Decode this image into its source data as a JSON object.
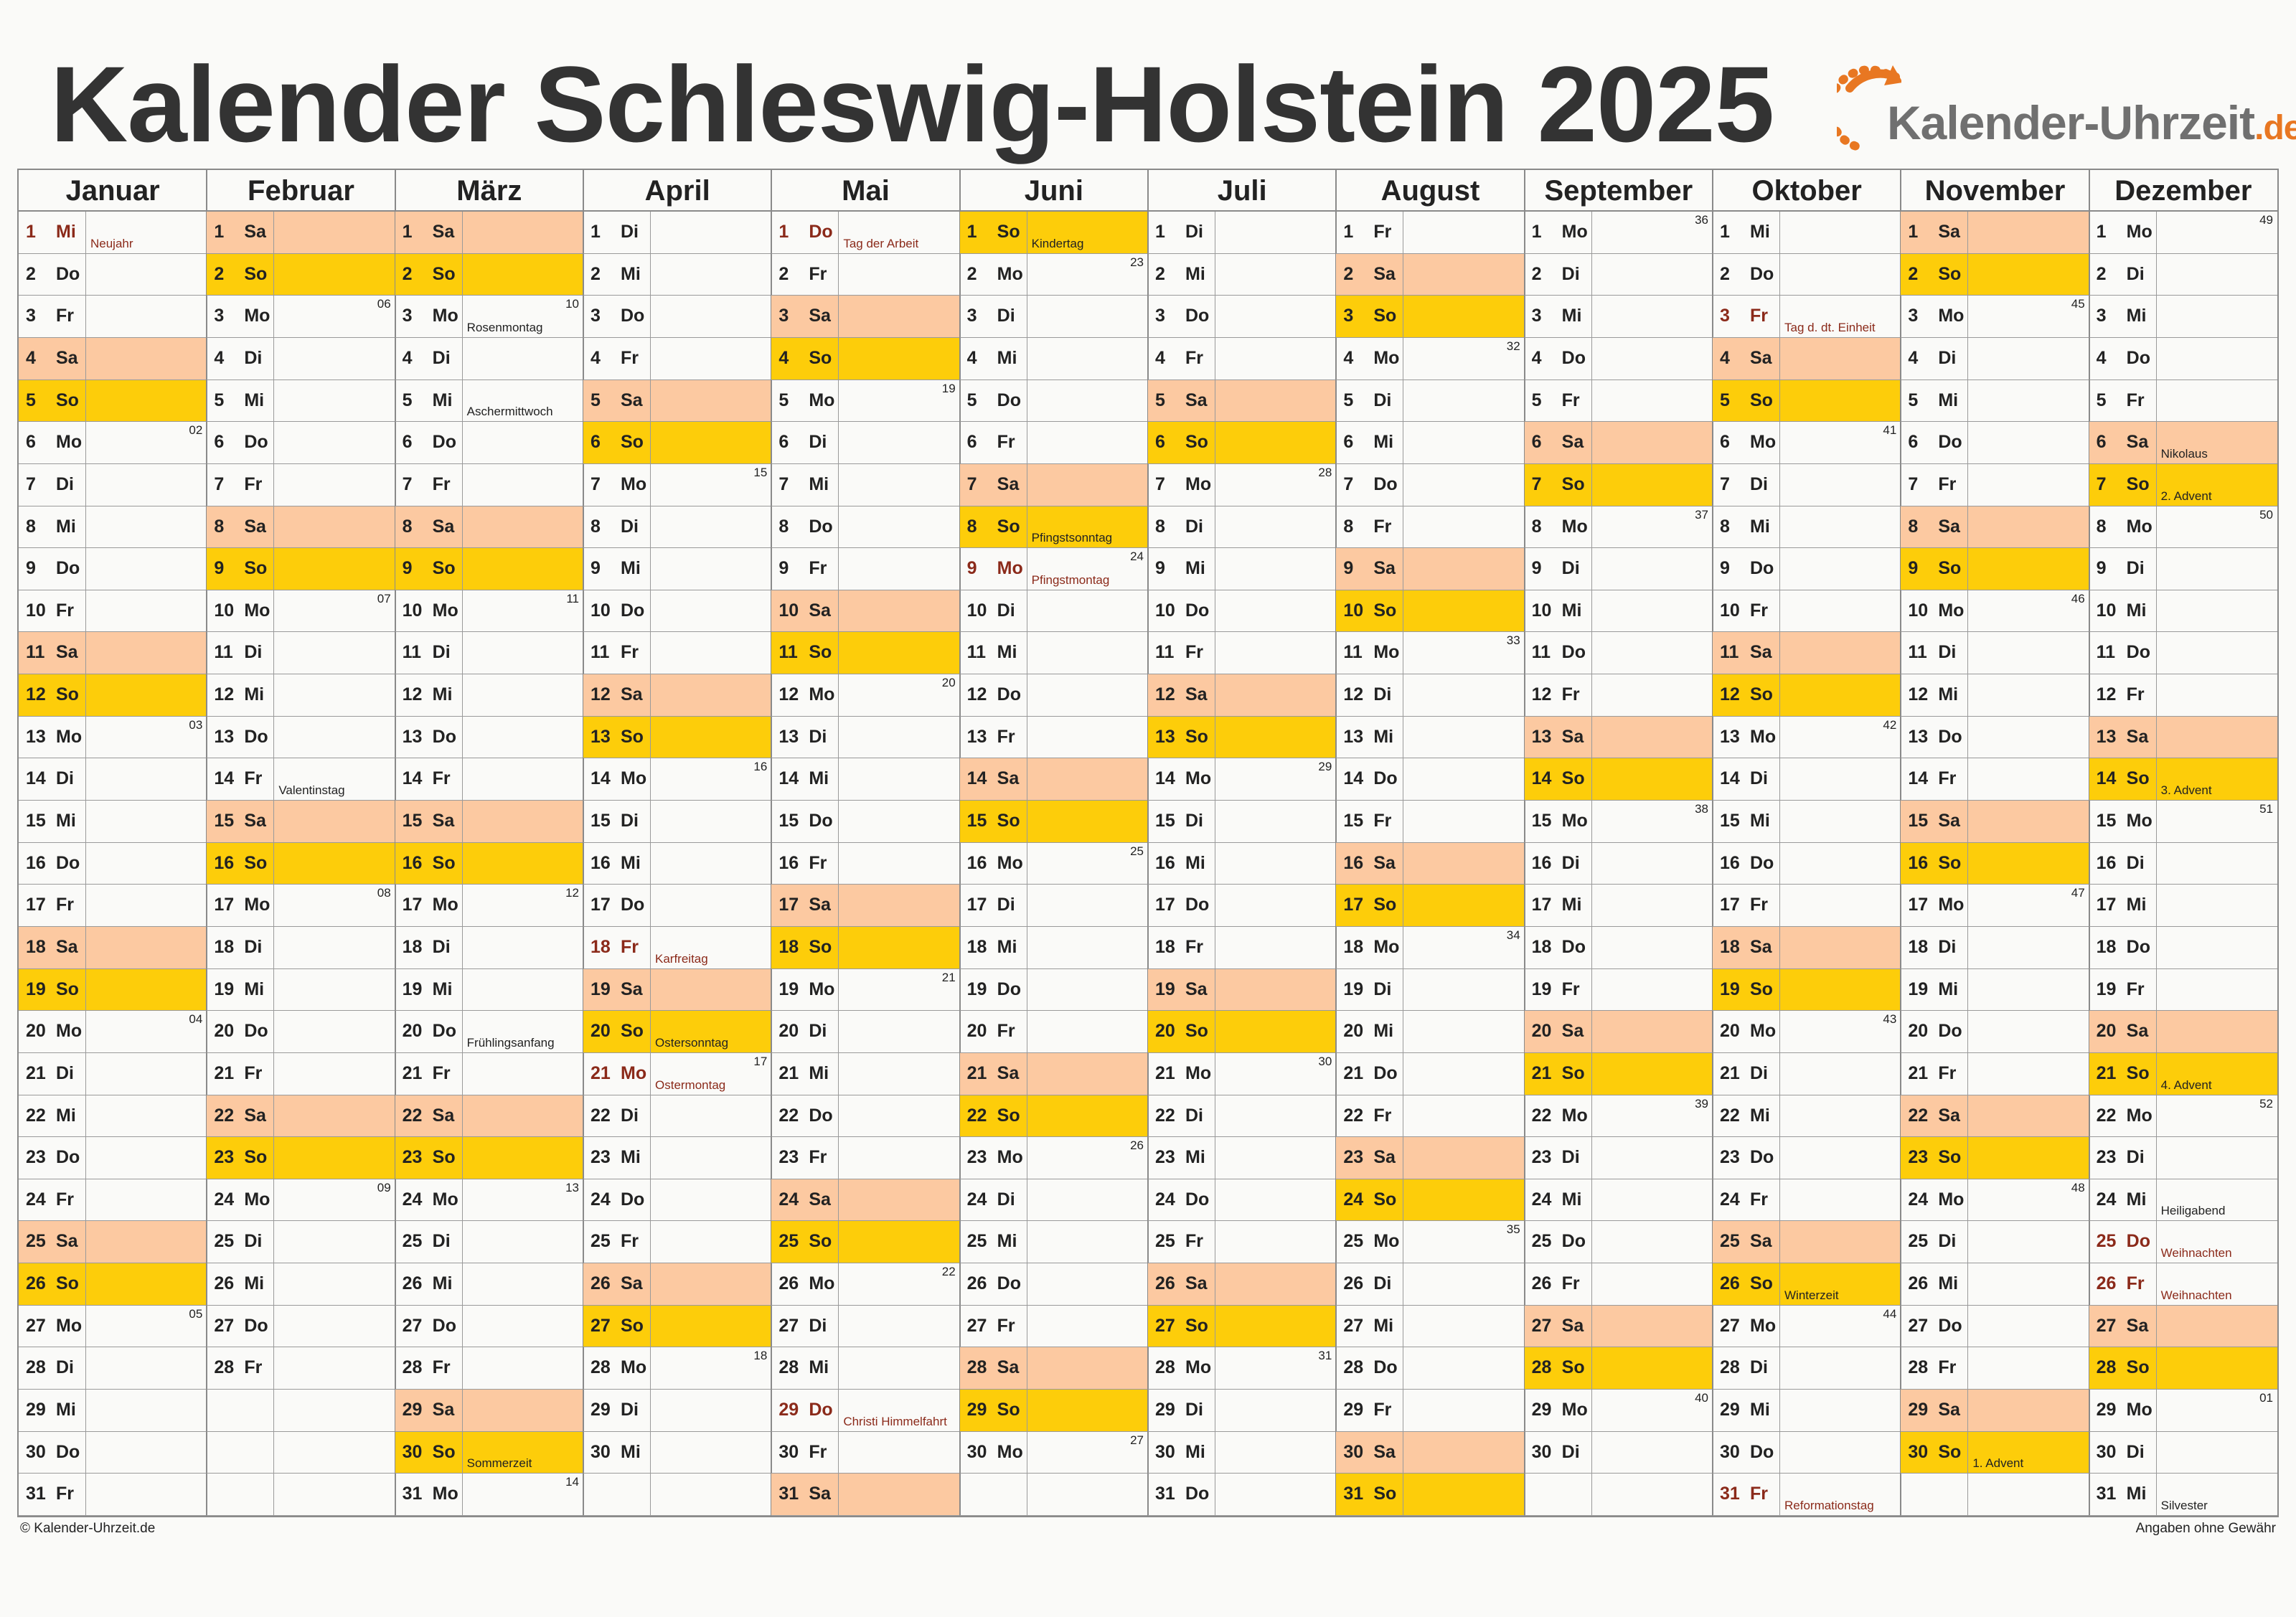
{
  "title": "Kalender Schleswig-Holstein 2025",
  "logo": {
    "text": "Kalender-Uhrzeit",
    "tld": ".de",
    "icon": "clock-arrow-icon"
  },
  "footer": {
    "left": "© Kalender-Uhrzeit.de",
    "right": "Angaben ohne Gewähr"
  },
  "colors": {
    "saturday": "#fcc9a1",
    "sunday": "#fdcd0a",
    "holiday_text": "#8b2a1a"
  },
  "year": 2025,
  "months": [
    {
      "name": "Januar",
      "days": 31,
      "start": 3
    },
    {
      "name": "Februar",
      "days": 28,
      "start": 6
    },
    {
      "name": "März",
      "days": 31,
      "start": 6
    },
    {
      "name": "April",
      "days": 30,
      "start": 2
    },
    {
      "name": "Mai",
      "days": 31,
      "start": 4
    },
    {
      "name": "Juni",
      "days": 30,
      "start": 0
    },
    {
      "name": "Juli",
      "days": 31,
      "start": 2
    },
    {
      "name": "August",
      "days": 31,
      "start": 5
    },
    {
      "name": "September",
      "days": 30,
      "start": 1
    },
    {
      "name": "Oktober",
      "days": 31,
      "start": 3
    },
    {
      "name": "November",
      "days": 30,
      "start": 6
    },
    {
      "name": "Dezember",
      "days": 31,
      "start": 1
    }
  ],
  "weekday_abbr": [
    "So",
    "Mo",
    "Di",
    "Mi",
    "Do",
    "Fr",
    "Sa"
  ],
  "events": [
    {
      "month": 1,
      "day": 1,
      "label": "Neujahr",
      "holiday": true
    },
    {
      "month": 2,
      "day": 14,
      "label": "Valentinstag",
      "holiday": false
    },
    {
      "month": 3,
      "day": 3,
      "label": "Rosenmontag",
      "holiday": false
    },
    {
      "month": 3,
      "day": 5,
      "label": "Aschermittwoch",
      "holiday": false
    },
    {
      "month": 3,
      "day": 20,
      "label": "Frühlingsanfang",
      "holiday": false
    },
    {
      "month": 3,
      "day": 30,
      "label": "Sommerzeit",
      "holiday": false
    },
    {
      "month": 4,
      "day": 18,
      "label": "Karfreitag",
      "holiday": true
    },
    {
      "month": 4,
      "day": 20,
      "label": "Ostersonntag",
      "holiday": false
    },
    {
      "month": 4,
      "day": 21,
      "label": "Ostermontag",
      "holiday": true
    },
    {
      "month": 5,
      "day": 1,
      "label": "Tag der Arbeit",
      "holiday": true
    },
    {
      "month": 5,
      "day": 29,
      "label": "Christi Himmelfahrt",
      "holiday": true
    },
    {
      "month": 6,
      "day": 1,
      "label": "Kindertag",
      "holiday": false
    },
    {
      "month": 6,
      "day": 8,
      "label": "Pfingstsonntag",
      "holiday": false
    },
    {
      "month": 6,
      "day": 9,
      "label": "Pfingstmontag",
      "holiday": true
    },
    {
      "month": 10,
      "day": 3,
      "label": "Tag d. dt. Einheit",
      "holiday": true
    },
    {
      "month": 10,
      "day": 26,
      "label": "Winterzeit",
      "holiday": false
    },
    {
      "month": 10,
      "day": 31,
      "label": "Reformationstag",
      "holiday": true
    },
    {
      "month": 11,
      "day": 30,
      "label": "1. Advent",
      "holiday": false
    },
    {
      "month": 12,
      "day": 6,
      "label": "Nikolaus",
      "holiday": false
    },
    {
      "month": 12,
      "day": 7,
      "label": "2. Advent",
      "holiday": false
    },
    {
      "month": 12,
      "day": 14,
      "label": "3. Advent",
      "holiday": false
    },
    {
      "month": 12,
      "day": 21,
      "label": "4. Advent",
      "holiday": false
    },
    {
      "month": 12,
      "day": 24,
      "label": "Heiligabend",
      "holiday": false
    },
    {
      "month": 12,
      "day": 25,
      "label": "Weihnachten",
      "holiday": true
    },
    {
      "month": 12,
      "day": 26,
      "label": "Weihnachten",
      "holiday": true
    },
    {
      "month": 12,
      "day": 31,
      "label": "Silvester",
      "holiday": false
    }
  ]
}
